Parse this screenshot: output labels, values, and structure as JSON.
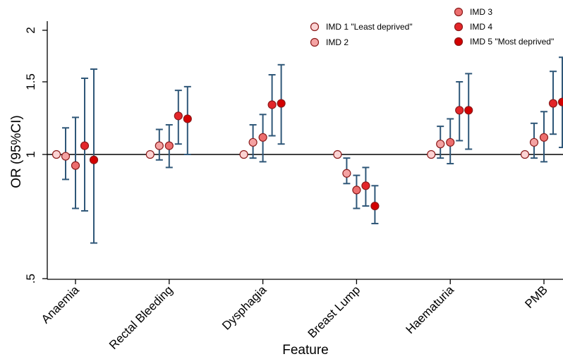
{
  "chart_data": {
    "type": "scatter",
    "subtype": "forest-plot-with-error-bars",
    "xlabel": "Feature",
    "ylabel": "OR (95%CI)",
    "y_scale": "log",
    "ylim": [
      0.5,
      2.15
    ],
    "y_ticks": [
      {
        "value": 0.5,
        "label": ".5"
      },
      {
        "value": 1,
        "label": "1"
      },
      {
        "value": 1.5,
        "label": "1.5"
      },
      {
        "value": 2,
        "label": "2"
      }
    ],
    "reference_line": 1,
    "grid": false,
    "legend_position": "top-right",
    "categories": [
      "Anaemia",
      "Rectal Bleeding",
      "Dysphagia",
      "Breast Lump",
      "Haematuria",
      "PMB"
    ],
    "error_bar_color": "#2f5778",
    "series": [
      {
        "name": "IMD 1 \"Least deprived\"",
        "color": "#fbd3d3",
        "or": [
          1,
          1,
          1,
          1,
          1,
          1
        ],
        "lower": [
          null,
          null,
          null,
          null,
          null,
          null
        ],
        "upper": [
          null,
          null,
          null,
          null,
          null,
          null
        ]
      },
      {
        "name": "IMD 2",
        "color": "#f4a3a3",
        "or": [
          0.99,
          1.05,
          1.07,
          0.9,
          1.06,
          1.07
        ],
        "lower": [
          0.87,
          0.97,
          0.98,
          0.85,
          0.98,
          0.98
        ],
        "upper": [
          1.16,
          1.15,
          1.18,
          0.98,
          1.17,
          1.19
        ]
      },
      {
        "name": "IMD 3",
        "color": "#ec6e6e",
        "or": [
          0.94,
          1.05,
          1.1,
          0.82,
          1.07,
          1.1
        ],
        "lower": [
          0.74,
          0.93,
          0.96,
          0.74,
          0.95,
          0.96
        ],
        "upper": [
          1.23,
          1.18,
          1.25,
          0.89,
          1.22,
          1.27
        ]
      },
      {
        "name": "IMD 4",
        "color": "#e3262a",
        "or": [
          1.05,
          1.24,
          1.32,
          0.84,
          1.28,
          1.33
        ],
        "lower": [
          0.73,
          1.06,
          1.11,
          0.75,
          1.08,
          1.12
        ],
        "upper": [
          1.53,
          1.43,
          1.56,
          0.93,
          1.5,
          1.59
        ]
      },
      {
        "name": "IMD 5 \"Most deprived\"",
        "color": "#d30000",
        "or": [
          0.97,
          1.22,
          1.33,
          0.75,
          1.28,
          1.34
        ],
        "lower": [
          0.61,
          1.0,
          1.06,
          0.68,
          1.03,
          1.04
        ],
        "upper": [
          1.61,
          1.46,
          1.65,
          0.84,
          1.57,
          1.72
        ]
      }
    ]
  }
}
